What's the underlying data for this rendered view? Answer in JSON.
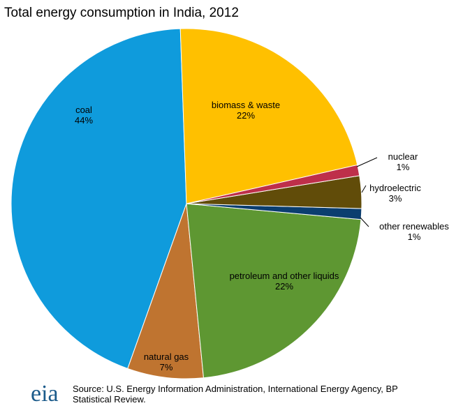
{
  "chart_data": {
    "type": "pie",
    "title": "Total energy consumption in India, 2012",
    "categories": [
      "biomass & waste",
      "nuclear",
      "hydroelectric",
      "other renewables",
      "petroleum and other liquids",
      "natural gas",
      "coal"
    ],
    "values": [
      22,
      1,
      3,
      1,
      22,
      7,
      44
    ],
    "value_labels": [
      "22%",
      "1%",
      "3%",
      "1%",
      "22%",
      "7%",
      "44%"
    ],
    "colors": [
      "#ffc000",
      "#be2f4a",
      "#614c09",
      "#0b3e6f",
      "#5e9732",
      "#bf7430",
      "#0f9bdc"
    ],
    "source": "Source: U.S. Energy Information Administration, International Energy Agency, BP Statistical Review.",
    "logo": "eia"
  }
}
